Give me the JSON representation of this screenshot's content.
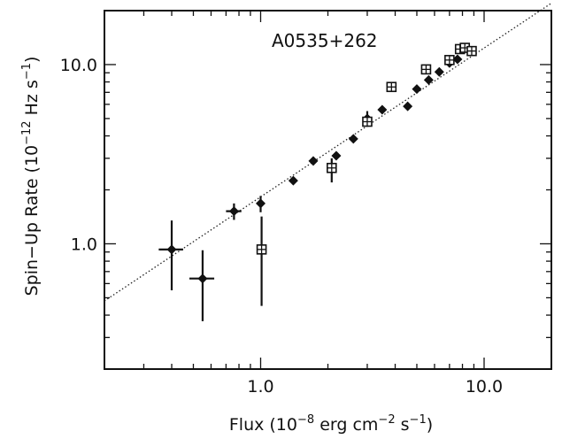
{
  "chart_data": {
    "type": "scatter",
    "title": "",
    "annotation": "A0535+262",
    "xlabel": {
      "prefix": "Flux (10",
      "exp1": "−8",
      "mid": " erg cm",
      "exp2": "−2",
      "mid2": " s",
      "exp3": "−1",
      "suffix": ")"
    },
    "ylabel": {
      "prefix": "Spin−Up Rate (10",
      "exp1": "−12",
      "mid": " Hz s",
      "exp2": "−1",
      "suffix": ")"
    },
    "x_scale": "log",
    "y_scale": "log",
    "xlim": [
      0.2,
      20
    ],
    "ylim": [
      0.2,
      20
    ],
    "x_ticks": [
      {
        "value": 1.0,
        "label": "1.0"
      },
      {
        "value": 10.0,
        "label": "10.0"
      }
    ],
    "y_ticks": [
      {
        "value": 1.0,
        "label": "1.0"
      },
      {
        "value": 10.0,
        "label": "10.0"
      }
    ],
    "grid": false,
    "fit_line": {
      "style": "dotted",
      "x": [
        0.2,
        20
      ],
      "y": [
        0.48,
        22
      ]
    },
    "series": [
      {
        "marker": "filled-diamond",
        "points": [
          {
            "x": 0.4,
            "y": 0.93,
            "xerr": 0.05,
            "y_lo": 0.55,
            "y_hi": 1.35
          },
          {
            "x": 0.55,
            "y": 0.64,
            "xerr": 0.07,
            "y_lo": 0.37,
            "y_hi": 0.92
          },
          {
            "x": 0.76,
            "y": 1.52,
            "xerr": 0.06,
            "y_lo": 1.36,
            "y_hi": 1.68
          },
          {
            "x": 1.0,
            "y": 1.68,
            "xerr": 0.04,
            "y_lo": 1.5,
            "y_hi": 1.85
          },
          {
            "x": 1.4,
            "y": 2.25
          },
          {
            "x": 1.72,
            "y": 2.9
          },
          {
            "x": 2.18,
            "y": 3.1
          },
          {
            "x": 2.6,
            "y": 3.85
          },
          {
            "x": 3.0,
            "y": 5.0,
            "y_lo": 4.5,
            "y_hi": 5.5
          },
          {
            "x": 3.5,
            "y": 5.6
          },
          {
            "x": 4.55,
            "y": 5.85
          },
          {
            "x": 5.0,
            "y": 7.3
          },
          {
            "x": 5.65,
            "y": 8.2
          },
          {
            "x": 6.3,
            "y": 9.1
          },
          {
            "x": 7.0,
            "y": 10.2
          },
          {
            "x": 7.6,
            "y": 10.7
          }
        ]
      },
      {
        "marker": "boxed-plus",
        "points": [
          {
            "x": 1.01,
            "y": 0.93,
            "y_lo": 0.45,
            "y_hi": 1.42
          },
          {
            "x": 2.08,
            "y": 2.65,
            "y_lo": 2.2,
            "y_hi": 3.0
          },
          {
            "x": 3.0,
            "y": 4.8
          },
          {
            "x": 3.85,
            "y": 7.5
          },
          {
            "x": 5.5,
            "y": 9.4
          },
          {
            "x": 7.0,
            "y": 10.6
          },
          {
            "x": 7.8,
            "y": 12.2
          },
          {
            "x": 8.2,
            "y": 12.4
          },
          {
            "x": 8.8,
            "y": 11.9
          }
        ]
      }
    ]
  }
}
